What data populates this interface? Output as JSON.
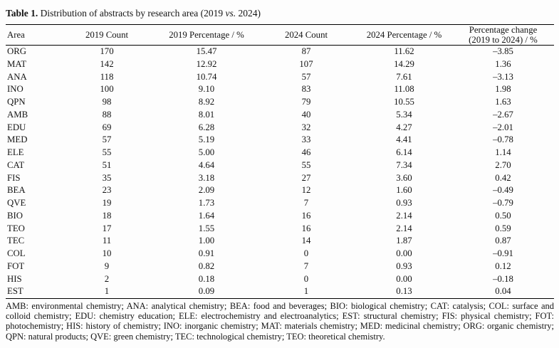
{
  "title": {
    "label": "Table 1.",
    "text_before_vs": " Distribution of abstracts by research area (2019 ",
    "vs": "vs.",
    "text_after_vs": " 2024)"
  },
  "table": {
    "columns": [
      {
        "label": "Area"
      },
      {
        "label": "2019 Count"
      },
      {
        "label": "2019 Percentage / %"
      },
      {
        "label": "2024 Count"
      },
      {
        "label": "2024 Percentage / %"
      },
      {
        "label": "Percentage change",
        "label2": "(2019 to 2024) / %"
      }
    ],
    "rows": [
      {
        "area": "ORG",
        "count_2019": "170",
        "pct_2019": "15.47",
        "count_2024": "87",
        "pct_2024": "11.62",
        "change": "–3.85"
      },
      {
        "area": "MAT",
        "count_2019": "142",
        "pct_2019": "12.92",
        "count_2024": "107",
        "pct_2024": "14.29",
        "change": "1.36"
      },
      {
        "area": "ANA",
        "count_2019": "118",
        "pct_2019": "10.74",
        "count_2024": "57",
        "pct_2024": "7.61",
        "change": "–3.13"
      },
      {
        "area": "INO",
        "count_2019": "100",
        "pct_2019": "9.10",
        "count_2024": "83",
        "pct_2024": "11.08",
        "change": "1.98"
      },
      {
        "area": "QPN",
        "count_2019": "98",
        "pct_2019": "8.92",
        "count_2024": "79",
        "pct_2024": "10.55",
        "change": "1.63"
      },
      {
        "area": "AMB",
        "count_2019": "88",
        "pct_2019": "8.01",
        "count_2024": "40",
        "pct_2024": "5.34",
        "change": "–2.67"
      },
      {
        "area": "EDU",
        "count_2019": "69",
        "pct_2019": "6.28",
        "count_2024": "32",
        "pct_2024": "4.27",
        "change": "–2.01"
      },
      {
        "area": "MED",
        "count_2019": "57",
        "pct_2019": "5.19",
        "count_2024": "33",
        "pct_2024": "4.41",
        "change": "–0.78"
      },
      {
        "area": "ELE",
        "count_2019": "55",
        "pct_2019": "5.00",
        "count_2024": "46",
        "pct_2024": "6.14",
        "change": "1.14"
      },
      {
        "area": "CAT",
        "count_2019": "51",
        "pct_2019": "4.64",
        "count_2024": "55",
        "pct_2024": "7.34",
        "change": "2.70"
      },
      {
        "area": "FIS",
        "count_2019": "35",
        "pct_2019": "3.18",
        "count_2024": "27",
        "pct_2024": "3.60",
        "change": "0.42"
      },
      {
        "area": "BEA",
        "count_2019": "23",
        "pct_2019": "2.09",
        "count_2024": "12",
        "pct_2024": "1.60",
        "change": "–0.49"
      },
      {
        "area": "QVE",
        "count_2019": "19",
        "pct_2019": "1.73",
        "count_2024": "7",
        "pct_2024": "0.93",
        "change": "–0.79"
      },
      {
        "area": "BIO",
        "count_2019": "18",
        "pct_2019": "1.64",
        "count_2024": "16",
        "pct_2024": "2.14",
        "change": "0.50"
      },
      {
        "area": "TEO",
        "count_2019": "17",
        "pct_2019": "1.55",
        "count_2024": "16",
        "pct_2024": "2.14",
        "change": "0.59"
      },
      {
        "area": "TEC",
        "count_2019": "11",
        "pct_2019": "1.00",
        "count_2024": "14",
        "pct_2024": "1.87",
        "change": "0.87"
      },
      {
        "area": "COL",
        "count_2019": "10",
        "pct_2019": "0.91",
        "count_2024": "0",
        "pct_2024": "0.00",
        "change": "–0.91"
      },
      {
        "area": "FOT",
        "count_2019": "9",
        "pct_2019": "0.82",
        "count_2024": "7",
        "pct_2024": "0.93",
        "change": "0.12"
      },
      {
        "area": "HIS",
        "count_2019": "2",
        "pct_2019": "0.18",
        "count_2024": "0",
        "pct_2024": "0.00",
        "change": "–0.18"
      },
      {
        "area": "EST",
        "count_2019": "1",
        "pct_2019": "0.09",
        "count_2024": "1",
        "pct_2024": "0.13",
        "change": "0.04"
      }
    ]
  },
  "footnote": "AMB: environmental chemistry; ANA: analytical chemistry; BEA: food and beverages; BIO: biological chemistry; CAT: catalysis; COL: surface and colloid chemistry; EDU: chemistry education; ELE: electrochemistry and electroanalytics; EST: structural chemistry; FIS: physical chemistry; FOT: photochemistry; HIS: history of chemistry; INO: inorganic chemistry; MAT: materials chemistry; MED: medicinal chemistry; ORG: organic chemistry; QPN: natural products; QVE: green chemistry; TEC: technological chemistry; TEO: theoretical chemistry."
}
